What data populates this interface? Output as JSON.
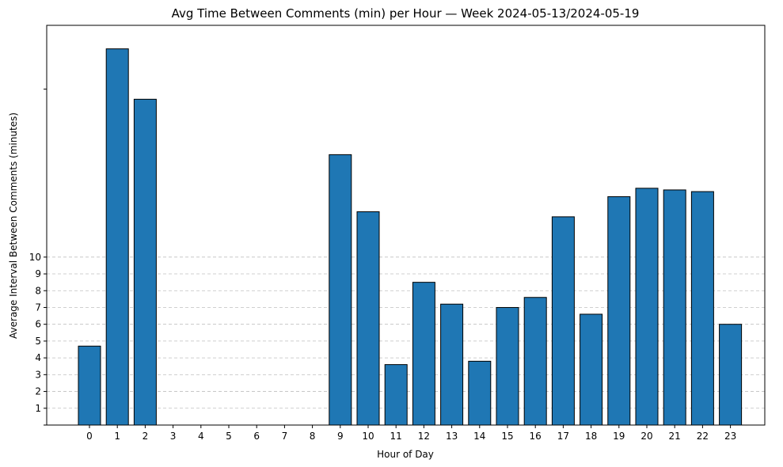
{
  "chart_data": {
    "type": "bar",
    "title": "Avg Time Between Comments (min) per Hour — Week 2024-05-13/2024-05-19",
    "xlabel": "Hour of Day",
    "ylabel": "Average Interval Between Comments (minutes)",
    "categories": [
      "0",
      "1",
      "2",
      "3",
      "4",
      "5",
      "6",
      "7",
      "8",
      "9",
      "10",
      "11",
      "12",
      "13",
      "14",
      "15",
      "16",
      "17",
      "18",
      "19",
      "20",
      "21",
      "22",
      "23"
    ],
    "values": [
      4.7,
      22.4,
      19.4,
      0,
      0,
      0,
      0,
      0,
      0,
      16.1,
      12.7,
      3.6,
      8.5,
      7.2,
      3.8,
      7.0,
      7.6,
      12.4,
      6.6,
      13.6,
      14.1,
      14.0,
      13.9,
      6.0
    ],
    "yticks": [
      "1",
      "2",
      "3",
      "4",
      "5",
      "6",
      "7",
      "8",
      "9",
      "10"
    ],
    "ylim": [
      0,
      23.8
    ],
    "grid": "y-dashed",
    "bar_color": "#1f77b4",
    "edge_color": "#000000"
  }
}
